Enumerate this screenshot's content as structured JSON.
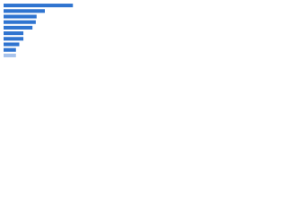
{
  "chart_data": {
    "type": "bar",
    "orientation": "horizontal",
    "categories": [
      null,
      null,
      null,
      null,
      null,
      null,
      null,
      null,
      null,
      null
    ],
    "values": [
      84,
      50,
      40,
      39,
      35,
      24,
      24,
      19,
      15,
      15
    ],
    "colors": [
      "#2f74d0",
      "#2f74d0",
      "#2f74d0",
      "#2f74d0",
      "#2f74d0",
      "#2f74d0",
      "#2f74d0",
      "#2f74d0",
      "#2f74d0",
      "#a8c3ec"
    ],
    "xlim": [
      0,
      100
    ],
    "grid": false
  }
}
